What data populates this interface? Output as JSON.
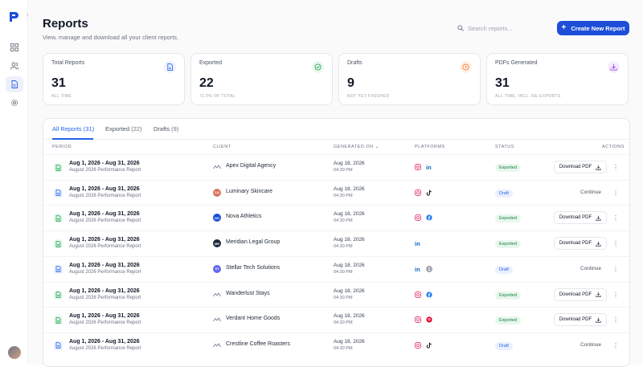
{
  "page": {
    "title": "Reports",
    "subtitle": "View, manage and download all your client reports.",
    "search_placeholder": "Search reports...",
    "create_label": "Create New Report"
  },
  "sidebar": {
    "items": [
      {
        "icon": "grid-icon",
        "active": false
      },
      {
        "icon": "users-icon",
        "active": false
      },
      {
        "icon": "document-icon",
        "active": true
      },
      {
        "icon": "gear-icon",
        "active": false
      }
    ]
  },
  "cards": [
    {
      "label": "Total Reports",
      "value": "31",
      "sub": "ALL TIME",
      "icon": "document-icon",
      "color": "#2563eb",
      "bg": "#eef2fd"
    },
    {
      "label": "Exported",
      "value": "22",
      "sub": "71.0% OF TOTAL",
      "icon": "check-circle-icon",
      "color": "#16a34a",
      "bg": "#eaf8ef"
    },
    {
      "label": "Drafts",
      "value": "9",
      "sub": "NOT YET FINISHED",
      "icon": "clock-icon",
      "color": "#f97316",
      "bg": "#fef1e7"
    },
    {
      "label": "PDFs Generated",
      "value": "31",
      "sub": "ALL TIME, INCL. RE-EXPORTS",
      "icon": "download-icon",
      "color": "#9333ea",
      "bg": "#f5edfd"
    }
  ],
  "tabs": [
    {
      "label": "All Reports",
      "count": "(31)",
      "active": true
    },
    {
      "label": "Exported",
      "count": "(22)",
      "active": false
    },
    {
      "label": "Drafts",
      "count": "(9)",
      "active": false
    }
  ],
  "columns": [
    "PERIOD",
    "CLIENT",
    "GENERATED ON",
    "PLATFORMS",
    "STATUS",
    "ACTIONS"
  ],
  "generated_sort_glyph": "⌄",
  "rows": [
    {
      "period": "Aug 1, 2026 - Aug 31, 2026",
      "report": "August 2026 Performance Report",
      "client": "Apex Digital Agency",
      "initials": "",
      "logo_color": "#ffffff",
      "date": "Aug 18, 2026",
      "time": "04:30 PM",
      "platforms": [
        "instagram",
        "linkedin"
      ],
      "status": "Exported",
      "action": "Download PDF"
    },
    {
      "period": "Aug 1, 2026 - Aug 31, 2026",
      "report": "August 2026 Performance Report",
      "client": "Luminary Skincare",
      "initials": "LU",
      "logo_color": "#d97764",
      "date": "Aug 18, 2026",
      "time": "04:30 PM",
      "platforms": [
        "instagram",
        "tiktok"
      ],
      "status": "Draft",
      "action": "Continue"
    },
    {
      "period": "Aug 1, 2026 - Aug 31, 2026",
      "report": "August 2026 Performance Report",
      "client": "Nova Athletics",
      "initials": "NO",
      "logo_color": "#1d4ed8",
      "date": "Aug 18, 2026",
      "time": "04:30 PM",
      "platforms": [
        "instagram",
        "facebook"
      ],
      "status": "Exported",
      "action": "Download PDF"
    },
    {
      "period": "Aug 1, 2026 - Aug 31, 2026",
      "report": "August 2026 Performance Report",
      "client": "Meridian Legal Group",
      "initials": "ME",
      "logo_color": "#1e293b",
      "date": "Aug 18, 2026",
      "time": "04:30 PM",
      "platforms": [
        "linkedin"
      ],
      "status": "Exported",
      "action": "Download PDF"
    },
    {
      "period": "Aug 1, 2026 - Aug 31, 2026",
      "report": "August 2026 Performance Report",
      "client": "Stellar Tech Solutions",
      "initials": "ST",
      "logo_color": "#6366f1",
      "date": "Aug 18, 2026",
      "time": "04:30 PM",
      "platforms": [
        "linkedin",
        "globe"
      ],
      "status": "Draft",
      "action": "Continue"
    },
    {
      "period": "Aug 1, 2026 - Aug 31, 2026",
      "report": "August 2026 Performance Report",
      "client": "Wanderlust Stays",
      "initials": "",
      "logo_color": "#ffffff",
      "date": "Aug 18, 2026",
      "time": "04:30 PM",
      "platforms": [
        "instagram",
        "facebook"
      ],
      "status": "Exported",
      "action": "Download PDF"
    },
    {
      "period": "Aug 1, 2026 - Aug 31, 2026",
      "report": "August 2026 Performance Report",
      "client": "Verdant Home Goods",
      "initials": "",
      "logo_color": "#ffffff",
      "date": "Aug 18, 2026",
      "time": "04:30 PM",
      "platforms": [
        "instagram",
        "pinterest"
      ],
      "status": "Exported",
      "action": "Download PDF"
    },
    {
      "period": "Aug 1, 2026 - Aug 31, 2026",
      "report": "August 2026 Performance Report",
      "client": "Crestline Coffee Roasters",
      "initials": "",
      "logo_color": "#ffffff",
      "date": "Aug 18, 2026",
      "time": "04:30 PM",
      "platforms": [
        "instagram",
        "tiktok"
      ],
      "status": "Draft",
      "action": "Continue"
    }
  ],
  "colors": {
    "accent": "#1d4ed8",
    "exported": "#15803d",
    "draft": "#2563eb"
  }
}
